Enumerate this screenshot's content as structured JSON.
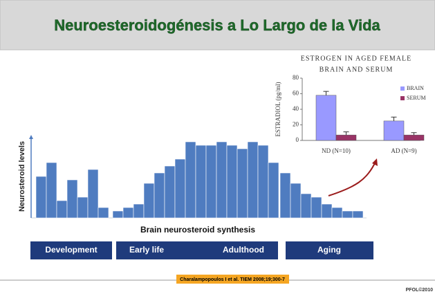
{
  "title": "Neuroesteroidogénesis a Lo Largo de la Vida",
  "stages": [
    "Development",
    "Early life",
    "Adulthood",
    "Aging"
  ],
  "citation": "Charalampopoulos I et al. TIEM 2008;19;300-7",
  "footer": "PFOL©2010",
  "chart_data": [
    {
      "type": "bar",
      "ylabel": "Neurosteroid levels",
      "xlabel": "Brain neurosteroid synthesis",
      "color": "#4f7cc0",
      "ylim": [
        0,
        120
      ],
      "values": [
        60,
        80,
        25,
        55,
        30,
        70,
        15,
        10,
        15,
        20,
        50,
        65,
        75,
        85,
        110,
        105,
        105,
        110,
        105,
        100,
        110,
        105,
        80,
        65,
        50,
        35,
        30,
        20,
        15,
        10,
        10
      ]
    },
    {
      "type": "bar",
      "title": [
        "ESTROGEN IN AGED FEMALE",
        "BRAIN AND SERUM"
      ],
      "ylabel": "ESTRADIOL (pg/ml)",
      "categories": [
        "ND (N=10)",
        "AD (N=9)"
      ],
      "ylim": [
        0,
        80
      ],
      "yticks": [
        0,
        20,
        40,
        60,
        80
      ],
      "series": [
        {
          "name": "BRAIN",
          "color": "#9999ff",
          "values": [
            58,
            25
          ],
          "errors": [
            5,
            5
          ]
        },
        {
          "name": "SERUM",
          "color": "#993366",
          "values": [
            7,
            7
          ],
          "errors": [
            4,
            3
          ]
        }
      ]
    }
  ]
}
